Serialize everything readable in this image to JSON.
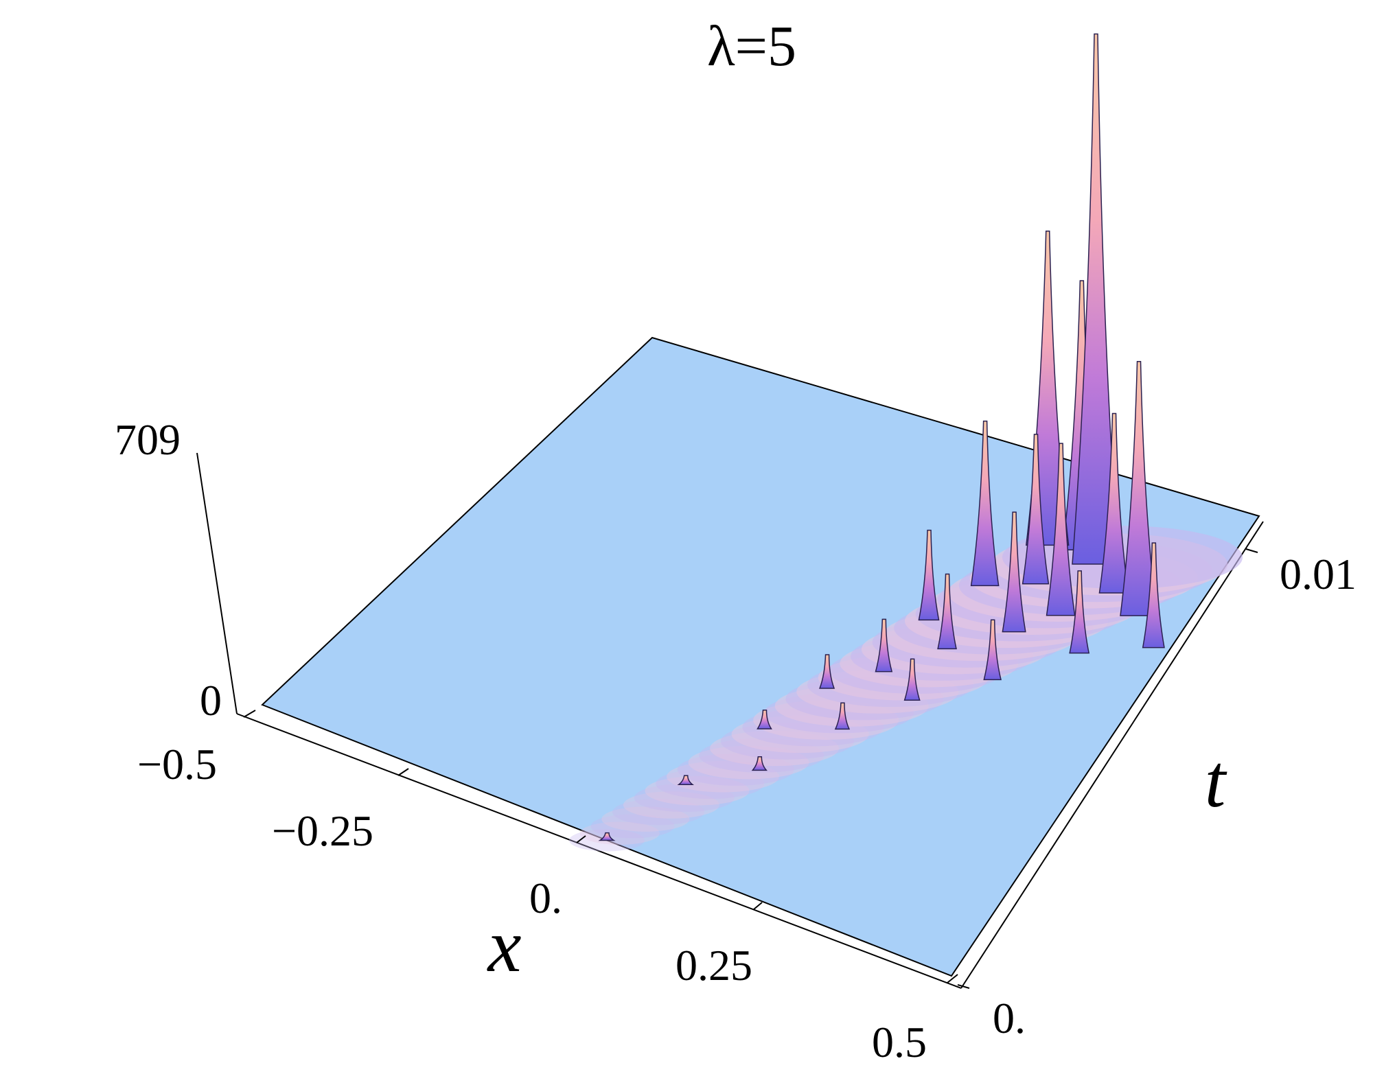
{
  "chart_data": {
    "type": "surface3d",
    "title": "λ=5",
    "xlabel": "x",
    "ylabel": "t",
    "zlabel": "",
    "x_ticks": [
      "−0.5",
      "−0.25",
      "0.",
      "0.25",
      "0.5"
    ],
    "t_ticks": [
      "0.",
      "0.01"
    ],
    "z_ticks": [
      "0",
      "709"
    ],
    "xlim": [
      -0.5,
      0.5
    ],
    "tlim": [
      0,
      0.012
    ],
    "zlim": [
      0,
      709
    ],
    "peaks": [
      {
        "x": 0.2,
        "t": 0.0108,
        "z": 709
      },
      {
        "x": 0.13,
        "t": 0.0108,
        "z": 420
      },
      {
        "x": 0.17,
        "t": 0.011,
        "z": 360
      },
      {
        "x": 0.3,
        "t": 0.01,
        "z": 340
      },
      {
        "x": 0.25,
        "t": 0.0103,
        "z": 240
      },
      {
        "x": 0.22,
        "t": 0.0093,
        "z": 230
      },
      {
        "x": 0.11,
        "t": 0.0093,
        "z": 220
      },
      {
        "x": 0.16,
        "t": 0.0098,
        "z": 200
      },
      {
        "x": 0.35,
        "t": 0.0094,
        "z": 140
      },
      {
        "x": 0.19,
        "t": 0.0085,
        "z": 160
      },
      {
        "x": 0.09,
        "t": 0.008,
        "z": 120
      },
      {
        "x": 0.28,
        "t": 0.0086,
        "z": 110
      },
      {
        "x": 0.14,
        "t": 0.0075,
        "z": 100
      },
      {
        "x": 0.22,
        "t": 0.0072,
        "z": 80
      },
      {
        "x": 0.1,
        "t": 0.0064,
        "z": 70
      },
      {
        "x": 0.16,
        "t": 0.006,
        "z": 55
      },
      {
        "x": 0.06,
        "t": 0.0055,
        "z": 45
      },
      {
        "x": 0.12,
        "t": 0.0047,
        "z": 35
      },
      {
        "x": 0.04,
        "t": 0.004,
        "z": 25
      },
      {
        "x": 0.08,
        "t": 0.003,
        "z": 18
      },
      {
        "x": 0.02,
        "t": 0.002,
        "z": 12
      },
      {
        "x": 0.0,
        "t": 0.0,
        "z": 10
      }
    ],
    "colors": {
      "surface": "#a9d0f8",
      "peak_low": "#6a5fe0",
      "peak_mid": "#f4a8b8",
      "peak_high": "#f8c8a8"
    }
  }
}
